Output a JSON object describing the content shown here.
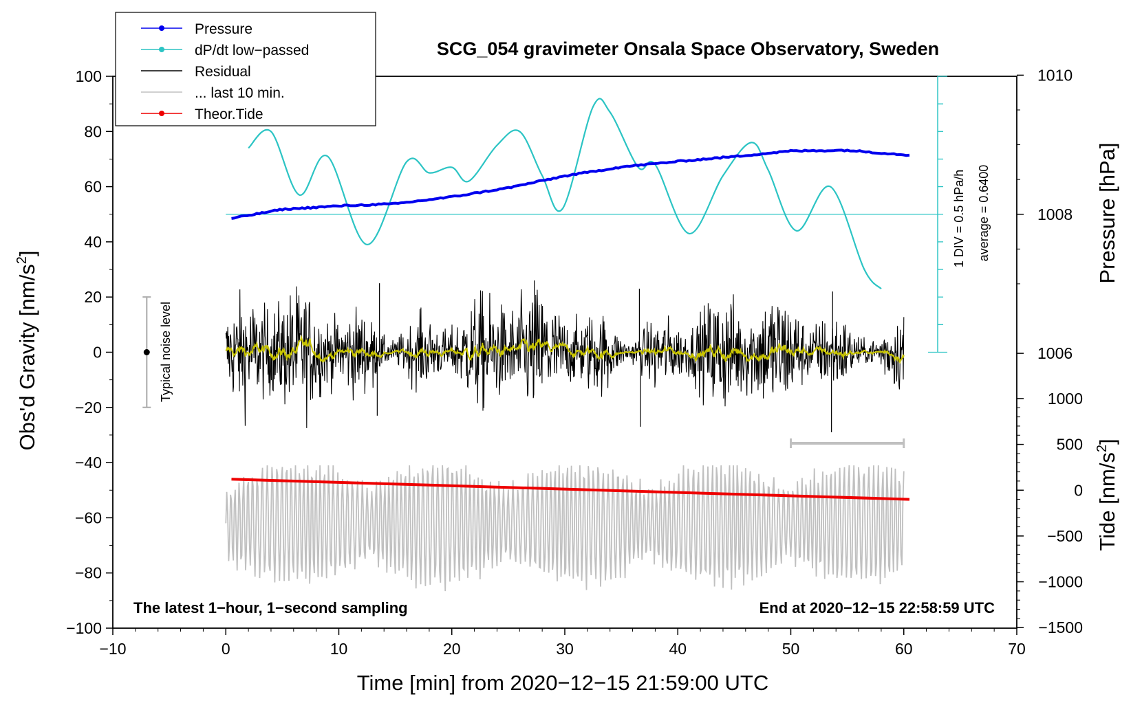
{
  "chart_data": {
    "type": "line",
    "title": "SCG_054 gravimeter Onsala Space Observatory, Sweden",
    "xlabel": "Time [min] from 2020−12−15 21:59:00 UTC",
    "ylabel_main": "Obs'd Gravity [nm/s",
    "ylabel_main_sup": "2",
    "ylabel_main_end": "]",
    "ylabel_pressure": "Pressure [hPa]",
    "ylabel_tide": "Tide [nm/s",
    "ylabel_tide_sup": "2",
    "ylabel_tide_end": "]",
    "xlim": [
      -10,
      70
    ],
    "ylim": [
      -100,
      100
    ],
    "x_ticks": [
      -10,
      0,
      10,
      20,
      30,
      40,
      50,
      60,
      70
    ],
    "x_tick_labels": [
      "−10",
      "0",
      "10",
      "20",
      "30",
      "40",
      "50",
      "60",
      "70"
    ],
    "y_ticks": [
      -100,
      -80,
      -60,
      -40,
      -20,
      0,
      20,
      40,
      60,
      80,
      100
    ],
    "y_tick_labels": [
      "−100",
      "−80",
      "−60",
      "−40",
      "−20",
      "0",
      "20",
      "40",
      "60",
      "80",
      "100"
    ],
    "pressure_axis": {
      "ticks": [
        1006,
        1008,
        1010
      ],
      "labels": [
        "1006",
        "1008",
        "1010"
      ]
    },
    "tide_axis": {
      "ticks": [
        -1500,
        -1000,
        -500,
        0,
        500,
        1000
      ],
      "labels": [
        "−1500",
        "−1000",
        "−500",
        "0",
        "500",
        "1000"
      ]
    },
    "legend": {
      "position": "top-left",
      "entries": [
        {
          "label": "Pressure",
          "color": "#0000ee",
          "marker": true
        },
        {
          "label": "dP/dt low−passed",
          "color": "#2cc4c4",
          "marker": true
        },
        {
          "label": "Residual",
          "color": "#000000",
          "marker": false
        },
        {
          "label": "... last 10 min.",
          "color": "#c0c0c0",
          "marker": false
        },
        {
          "label": "Theor.Tide",
          "color": "#ee0000",
          "marker": true
        }
      ]
    },
    "series": [
      {
        "name": "Pressure",
        "axis": "pressure",
        "color": "#0000ee",
        "x": [
          0.5,
          5,
          10,
          15,
          20,
          25,
          30,
          35,
          40,
          45,
          50,
          55,
          60.5
        ],
        "values": [
          1007.94,
          1008.07,
          1008.12,
          1008.15,
          1008.25,
          1008.38,
          1008.55,
          1008.68,
          1008.76,
          1008.83,
          1008.91,
          1008.92,
          1008.85
        ]
      },
      {
        "name": "dP/dt low-passed",
        "axis": "gravity",
        "color": "#2cc4c4",
        "x": [
          2,
          4,
          6.5,
          9,
          12.5,
          16,
          18,
          20,
          21.5,
          24,
          26,
          28,
          29.8,
          32.5,
          34,
          36.5,
          38,
          41,
          44,
          46.5,
          48,
          50.5,
          53.5,
          56.5,
          58
        ],
        "values": [
          74,
          80,
          57,
          71,
          39,
          69,
          65,
          67,
          62,
          75,
          80,
          64,
          52,
          89,
          87,
          67,
          68,
          43,
          64,
          76,
          66,
          44,
          60,
          30,
          23
        ]
      },
      {
        "name": "Residual",
        "axis": "gravity",
        "color": "#000000",
        "x_range": [
          0,
          60
        ],
        "peaks": [
          25,
          -23,
          26,
          -27,
          23,
          -29
        ],
        "note": "1-second sampled noise around 0, typical amplitude about ±12 nm/s2, with a yellow running mean near 0"
      },
      {
        "name": "... last 10 min.",
        "axis": "gravity",
        "color": "#c0c0c0",
        "x_range": [
          0,
          60
        ],
        "values_range": [
          -91,
          -41
        ],
        "center": -62
      },
      {
        "name": "Theor.Tide",
        "axis": "tide",
        "color": "#ee0000",
        "x": [
          0.5,
          60.5
        ],
        "values": [
          120,
          -100
        ]
      }
    ],
    "pressure_reference_line": 1008,
    "dpdt_scale_bar": {
      "label": "1 DIV = 0.5 hPa/h",
      "average_label": "average = 0.6400",
      "divisions": 10
    },
    "noise_bar": {
      "label": "Typical noise level",
      "x": -7,
      "y": 0,
      "range": [
        -20,
        20
      ]
    },
    "window_bar": {
      "x": [
        50,
        60
      ],
      "y": -33
    },
    "note_left": "The latest 1−hour, 1−second sampling",
    "note_right": "End at 2020−12−15 22:58:59 UTC"
  }
}
